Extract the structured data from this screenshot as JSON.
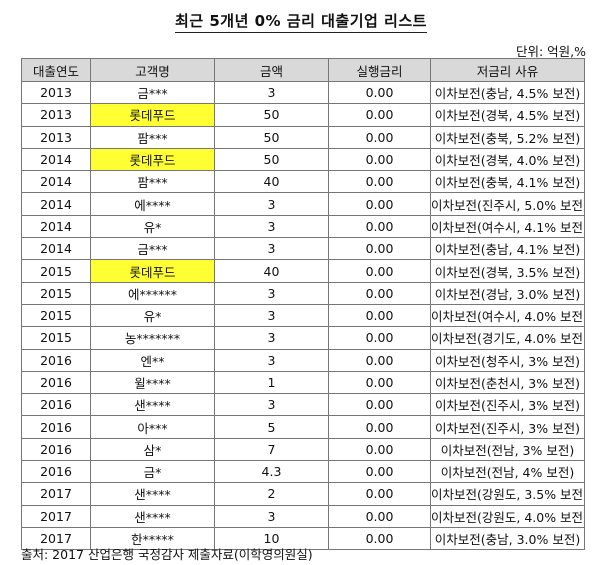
{
  "title": "최근 5개년 0% 금리 대출기업 리스트",
  "unit": "단위: 억원,%",
  "columns": [
    "대출연도",
    "고객명",
    "금액",
    "실행금리",
    "저금리 사유"
  ],
  "highlight_color": "#ffff33",
  "rows": [
    {
      "year": "2013",
      "customer": "금***",
      "amount": "3",
      "rate": "0.00",
      "reason": "이차보전(충남, 4.5% 보전)",
      "highlight": false
    },
    {
      "year": "2013",
      "customer": "롯데푸드",
      "amount": "50",
      "rate": "0.00",
      "reason": "이차보전(경북, 4.5% 보전)",
      "highlight": true
    },
    {
      "year": "2013",
      "customer": "팜***",
      "amount": "50",
      "rate": "0.00",
      "reason": "이차보전(충북, 5.2% 보전)",
      "highlight": false
    },
    {
      "year": "2014",
      "customer": "롯데푸드",
      "amount": "50",
      "rate": "0.00",
      "reason": "이차보전(경북, 4.0% 보전)",
      "highlight": true
    },
    {
      "year": "2014",
      "customer": "팜***",
      "amount": "40",
      "rate": "0.00",
      "reason": "이차보전(충북, 4.1% 보전)",
      "highlight": false
    },
    {
      "year": "2014",
      "customer": "에****",
      "amount": "3",
      "rate": "0.00",
      "reason": "이차보전(진주시, 5.0% 보전)",
      "highlight": false
    },
    {
      "year": "2014",
      "customer": "유*",
      "amount": "3",
      "rate": "0.00",
      "reason": "이차보전(여수시, 4.1% 보전)",
      "highlight": false
    },
    {
      "year": "2014",
      "customer": "금***",
      "amount": "3",
      "rate": "0.00",
      "reason": "이차보전(충남, 4.1% 보전)",
      "highlight": false
    },
    {
      "year": "2015",
      "customer": "롯데푸드",
      "amount": "40",
      "rate": "0.00",
      "reason": "이차보전(경북, 3.5% 보전)",
      "highlight": true
    },
    {
      "year": "2015",
      "customer": "에******",
      "amount": "3",
      "rate": "0.00",
      "reason": "이차보전(경남, 3.0% 보전)",
      "highlight": false
    },
    {
      "year": "2015",
      "customer": "유*",
      "amount": "3",
      "rate": "0.00",
      "reason": "이차보전(여수시, 4.0% 보전)",
      "highlight": false
    },
    {
      "year": "2015",
      "customer": "농*******",
      "amount": "3",
      "rate": "0.00",
      "reason": "이차보전(경기도, 4.0% 보전)",
      "highlight": false
    },
    {
      "year": "2016",
      "customer": "엔**",
      "amount": "3",
      "rate": "0.00",
      "reason": "이차보전(청주시, 3% 보전)",
      "highlight": false
    },
    {
      "year": "2016",
      "customer": "윌****",
      "amount": "1",
      "rate": "0.00",
      "reason": "이차보전(춘천시, 3% 보전)",
      "highlight": false
    },
    {
      "year": "2016",
      "customer": "샌****",
      "amount": "3",
      "rate": "0.00",
      "reason": "이차보전(진주시, 3% 보전)",
      "highlight": false
    },
    {
      "year": "2016",
      "customer": "아***",
      "amount": "5",
      "rate": "0.00",
      "reason": "이차보전(진주시, 3% 보전)",
      "highlight": false
    },
    {
      "year": "2016",
      "customer": "삼*",
      "amount": "7",
      "rate": "0.00",
      "reason": "이차보전(전남, 3% 보전)",
      "highlight": false
    },
    {
      "year": "2016",
      "customer": "금*",
      "amount": "4.3",
      "rate": "0.00",
      "reason": "이차보전(전남, 4% 보전)",
      "highlight": false
    },
    {
      "year": "2017",
      "customer": "샌****",
      "amount": "2",
      "rate": "0.00",
      "reason": "이차보전(강원도, 3.5% 보전)",
      "highlight": false
    },
    {
      "year": "2017",
      "customer": "샌****",
      "amount": "3",
      "rate": "0.00",
      "reason": "이차보전(강원도, 4.0% 보전)",
      "highlight": false
    },
    {
      "year": "2017",
      "customer": "한*****",
      "amount": "10",
      "rate": "0.00",
      "reason": "이차보전(충남, 3.0% 보전)",
      "highlight": false
    }
  ],
  "source": "출처: 2017 산업은행 국정감사 제출자료(이학영의원실)"
}
